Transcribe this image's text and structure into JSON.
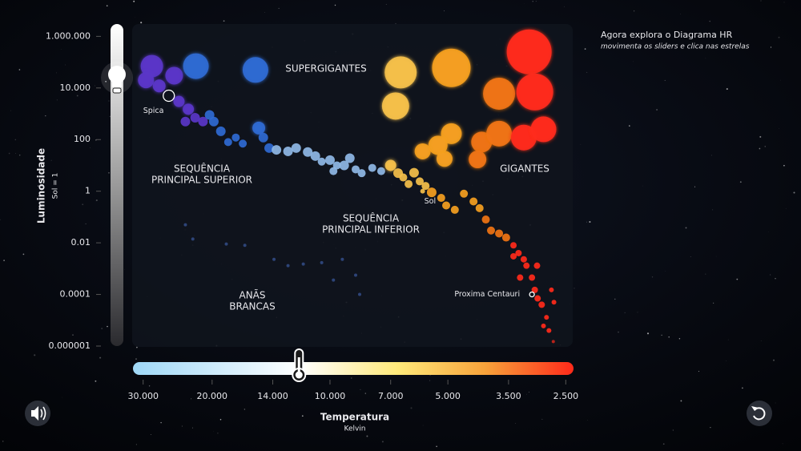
{
  "chart_data": {
    "type": "scatter",
    "intro": {
      "title": "Agora explora o Diagrama HR",
      "subtitle": "movimenta os sliders e clica nas estrelas"
    },
    "y_label": "Luminosidade",
    "y_sublabel": "Sol = 1",
    "x_label": "Temperatura",
    "x_sublabel": "Kelvin",
    "xscale": "log",
    "yscale": "log",
    "xlim": [
      32000,
      2400
    ],
    "ylim": [
      1e-06,
      3000000
    ],
    "xticks": [
      {
        "value": 30000,
        "label": "30.000"
      },
      {
        "value": 20000,
        "label": "20.000"
      },
      {
        "value": 14000,
        "label": "14.000"
      },
      {
        "value": 10000,
        "label": "10.000"
      },
      {
        "value": 7000,
        "label": "7.000"
      },
      {
        "value": 5000,
        "label": "5.000"
      },
      {
        "value": 3500,
        "label": "3.500"
      },
      {
        "value": 2500,
        "label": "2.500"
      }
    ],
    "yticks": [
      {
        "value": 1000000,
        "label": "1.000.000"
      },
      {
        "value": 10000,
        "label": "10.000"
      },
      100,
      1,
      0.01,
      0.0001,
      1e-06
    ],
    "regions": [
      {
        "lines": [
          "SUPERGIGANTES"
        ]
      },
      {
        "lines": [
          "SEQUÊNCIA",
          "PRINCIPAL SUPERIOR"
        ]
      },
      {
        "lines": [
          "GIGANTES"
        ]
      },
      {
        "lines": [
          "SEQUÊNCIA",
          "PRINCIPAL INFERIOR"
        ]
      },
      {
        "lines": [
          "ANÃS",
          "BRANCAS"
        ]
      }
    ],
    "annotations": [
      {
        "text": "Spica",
        "x": 25800,
        "y": 5000,
        "ring": true
      },
      {
        "text": "Sol",
        "x": 5800,
        "y": 1,
        "ring": false
      },
      {
        "text": "Proxima Centauri",
        "x": 3050,
        "y": 0.0001,
        "ring": true
      }
    ],
    "sliders": {
      "luminosity": 25000,
      "temperature": 12000
    },
    "series": [
      {
        "color": "#5a36c8",
        "x": [
          28500,
          25000,
          29500,
          27300,
          24300,
          23000,
          22100,
          23400,
          21100
        ],
        "values": [
          70000,
          30000,
          20000,
          12000,
          3000,
          1500,
          700,
          500,
          500
        ],
        "sizes": [
          14,
          11,
          10,
          8,
          7,
          7,
          6,
          6,
          6
        ]
      },
      {
        "color": "#2f6ad2",
        "x": [
          22000,
          15500,
          20300,
          19800,
          19000,
          18200,
          17400,
          16700,
          15200,
          14800,
          14300
        ],
        "values": [
          70000,
          50000,
          900,
          500,
          210,
          80,
          120,
          70,
          280,
          120,
          47
        ],
        "sizes": [
          16,
          16,
          6,
          6,
          6,
          5,
          5,
          5,
          8,
          6,
          6
        ]
      },
      {
        "color": "#8fb8e6",
        "x": [
          13700,
          12800,
          12200,
          11400,
          10900,
          10500,
          10000,
          9600,
          9800,
          9200,
          8900,
          8600,
          8300,
          7800,
          7400
        ],
        "values": [
          40,
          35,
          47,
          33,
          23,
          14,
          16,
          10,
          6,
          10,
          19,
          7,
          5,
          8,
          6
        ],
        "sizes": [
          6,
          6,
          6,
          6,
          6,
          5,
          6,
          5,
          5,
          6,
          6,
          5,
          5,
          5,
          5
        ]
      },
      {
        "color": "#f5c04a",
        "x": [
          6600,
          6800,
          7000,
          6700,
          6500,
          6300,
          6100,
          5900,
          5700,
          5800
        ],
        "values": [
          40000,
          2000,
          10,
          5,
          3.4,
          1.9,
          5.2,
          2.4,
          1.6,
          1
        ],
        "sizes": [
          20,
          17,
          7,
          6,
          5,
          5,
          6,
          5,
          5,
          3
        ]
      },
      {
        "color": "#f5a020",
        "x": [
          4900,
          4900,
          5300,
          5100,
          5800,
          5500,
          5200,
          5050,
          4800,
          4550,
          4300,
          4150
        ],
        "values": [
          60000,
          170,
          60,
          18,
          35,
          0.9,
          0.55,
          0.28,
          0.19,
          0.8,
          0.4,
          0.22
        ],
        "sizes": [
          24,
          13,
          12,
          10,
          10,
          6,
          5,
          5,
          5,
          5,
          5,
          5
        ]
      },
      {
        "color": "#f07412",
        "x": [
          3700,
          4100,
          4200,
          3700,
          4000,
          3880,
          3700,
          3550
        ],
        "values": [
          6000,
          80,
          17,
          170,
          0.08,
          0.03,
          0.023,
          0.016
        ],
        "sizes": [
          20,
          13,
          11,
          16,
          5,
          5,
          5,
          5
        ]
      },
      {
        "color": "#ff2a1a",
        "x": [
          3100,
          3000,
          3200,
          2850,
          3400,
          3300,
          3200,
          3150,
          3050,
          3000,
          2950,
          2880,
          2800,
          2760,
          2690,
          2850,
          2720,
          2680,
          3270,
          3400,
          2960
        ],
        "values": [
          250000,
          7000,
          120,
          250,
          0.008,
          0.004,
          0.0023,
          0.0013,
          0.00045,
          0.00015,
          7e-05,
          4e-05,
          1.3e-05,
          4e-06,
          1.5e-06,
          6e-06,
          0.00015,
          5e-05,
          0.00045,
          0.003,
          0.0013
        ],
        "sizes": [
          28,
          23,
          16,
          16,
          4,
          4,
          4,
          4,
          4,
          4,
          4,
          4,
          3,
          3,
          2,
          3,
          3,
          3,
          4,
          4,
          4
        ]
      },
      {
        "color": "#3a5aa0",
        "x": [
          23400,
          22400,
          18400,
          16500,
          13900,
          12800,
          11700,
          10500,
          9300,
          9800,
          8600,
          8400
        ],
        "values": [
          0.05,
          0.014,
          0.009,
          0.008,
          0.0023,
          0.0013,
          0.0015,
          0.0017,
          0.0023,
          0.00036,
          0.00056,
          0.0001
        ],
        "sizes": [
          2,
          2,
          2,
          2,
          2,
          2,
          2,
          2,
          2,
          2,
          2,
          2
        ]
      }
    ]
  }
}
